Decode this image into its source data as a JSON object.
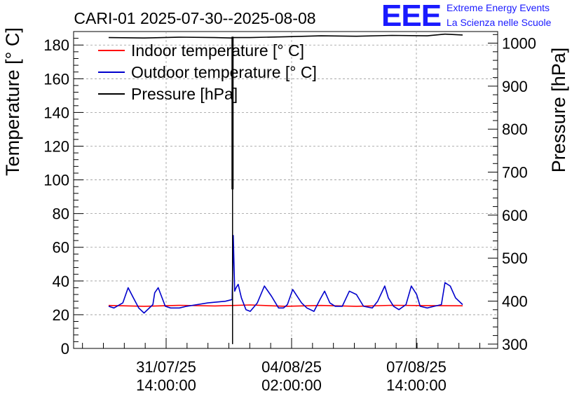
{
  "header": {
    "title": "CARI-01 2025-07-30--2025-08-08",
    "logo_text": "EEE",
    "logo_line1": "Extreme Energy Events",
    "logo_line2": "La Scienza nelle Scuole"
  },
  "chart_data": {
    "type": "line",
    "title": "CARI-01 2025-07-30--2025-08-08",
    "ylabel": "Temperature [° C]",
    "y2label": "Pressure [hPa]",
    "xlabel": "",
    "ylim": [
      0,
      188
    ],
    "y2lim": [
      290,
      1027
    ],
    "yticks": [
      "0",
      "20",
      "40",
      "60",
      "80",
      "100",
      "120",
      "140",
      "160",
      "180"
    ],
    "y2ticks": [
      "300",
      "400",
      "500",
      "600",
      "700",
      "800",
      "900",
      "1000"
    ],
    "xticks": [
      {
        "line1": "31/07/25",
        "line2": "14:00:00"
      },
      {
        "line1": "04/08/25",
        "line2": "02:00:00"
      },
      {
        "line1": "07/08/25",
        "line2": "14:00:00"
      }
    ],
    "grid": true,
    "legend_position": "top-left",
    "series": [
      {
        "name": "Indoor temperature [° C]",
        "color": "#ff0000",
        "axis": "left",
        "x": [
          0,
          10,
          20,
          30,
          40,
          50,
          60,
          70,
          80,
          90,
          100
        ],
        "y": [
          25.5,
          25.0,
          25.6,
          25.2,
          25.8,
          25.0,
          25.5,
          25.0,
          25.6,
          25.4,
          25.3
        ]
      },
      {
        "name": "Outdoor temperature [° C]",
        "color": "#0000cc",
        "axis": "left",
        "x": [
          0,
          1.5,
          4,
          5.5,
          7,
          8.5,
          10,
          12.5,
          13,
          14,
          16,
          17.5,
          19,
          20,
          22,
          25,
          28,
          33,
          34.9,
          35.2,
          35.6,
          36,
          36.6,
          37.5,
          38.8,
          40,
          42,
          44,
          46,
          48,
          49.4,
          50.5,
          52,
          54.5,
          56,
          58,
          59.7,
          61,
          62.5,
          64,
          66,
          68,
          70,
          72,
          74.5,
          76,
          78,
          79,
          80.5,
          82,
          84,
          85.5,
          87,
          88,
          90,
          92,
          94,
          95,
          96.5,
          98,
          100
        ],
        "y": [
          25,
          24,
          27,
          36,
          30,
          24,
          21,
          26,
          33,
          36,
          25,
          24,
          24,
          24,
          25,
          26,
          27,
          28,
          29,
          67,
          34,
          36,
          38,
          30,
          23,
          22,
          27,
          37,
          31,
          24,
          24,
          26,
          35,
          27,
          24,
          22,
          29,
          34,
          27,
          25,
          25,
          34,
          32,
          25,
          24,
          28,
          37,
          30,
          25,
          23,
          26,
          37,
          32,
          25,
          24,
          25,
          26,
          39,
          37,
          30,
          26
        ]
      },
      {
        "name": "Pressure [hPa]",
        "color": "#000000",
        "axis": "right",
        "x": [
          0,
          10,
          20,
          30,
          34.9,
          35.1,
          40,
          50,
          60,
          70,
          80,
          90,
          95,
          100
        ],
        "y": [
          1013,
          1012,
          1014,
          1013,
          1012,
          1013,
          1013,
          1015,
          1017,
          1016,
          1018,
          1017,
          1021,
          1019
        ]
      }
    ],
    "pressure_glitch": {
      "x": 35,
      "y_top": 1015,
      "y_bottom": 300,
      "y_dense_min": 660
    }
  }
}
